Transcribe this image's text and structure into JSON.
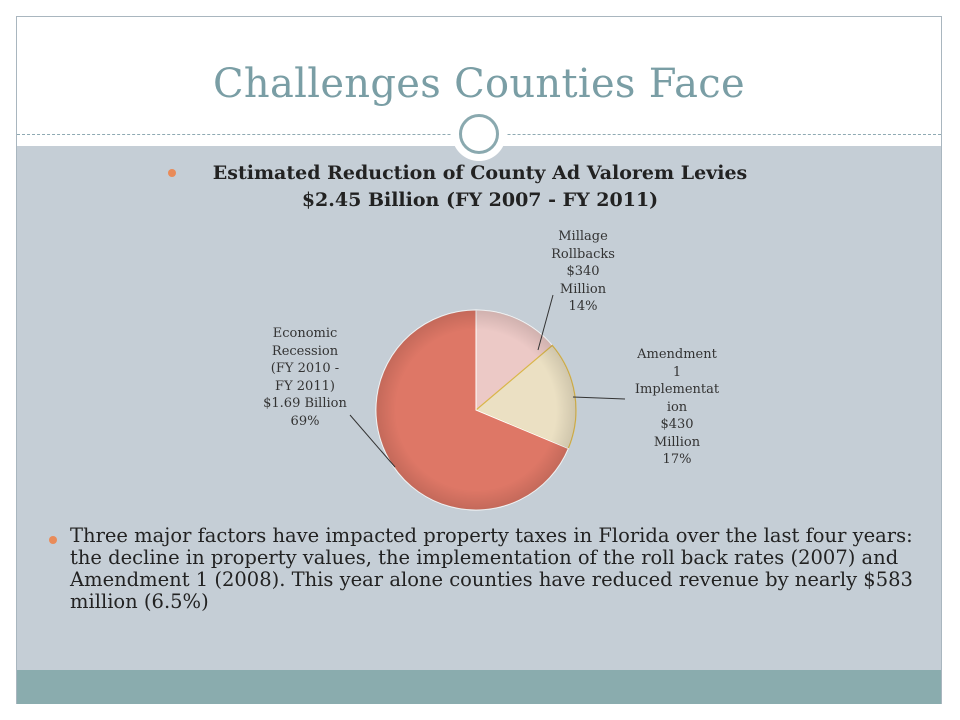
{
  "slide": {
    "title": "Challenges Counties Face",
    "heading_line1": "Estimated Reduction of County Ad Valorem Levies",
    "heading_line2": "$2.45 Billion (FY 2007 - FY 2011)",
    "body": "Three major factors have impacted property taxes in Florida over the last four years: the decline in property values, the implementation of the roll back rates (2007) and Amendment 1 (2008).  This year alone counties have reduced revenue by nearly $583 million (6.5%)"
  },
  "chart_data": {
    "type": "pie",
    "title": "",
    "slices": [
      {
        "label_lines": [
          "Millage",
          "Rollbacks",
          "$340",
          "Million",
          "14%"
        ],
        "value_millions": 340,
        "percent": 14,
        "color": "#ecc9c6"
      },
      {
        "label_lines": [
          "Amendment",
          "1",
          "Implementat",
          "ion",
          "$430",
          "Million",
          "17%"
        ],
        "value_millions": 430,
        "percent": 17,
        "color": "#ebe0c3"
      },
      {
        "label_lines": [
          "Economic",
          "Recession",
          "(FY 2010 -",
          "FY 2011)",
          "$1.69 Billion",
          "69%"
        ],
        "value_millions": 1690,
        "percent": 69,
        "color": "#de7766"
      }
    ]
  },
  "colors": {
    "title": "#7a9ea5",
    "content_bg": "#c5ced6",
    "band": "#8aacae",
    "bullet": "#e98b59"
  }
}
